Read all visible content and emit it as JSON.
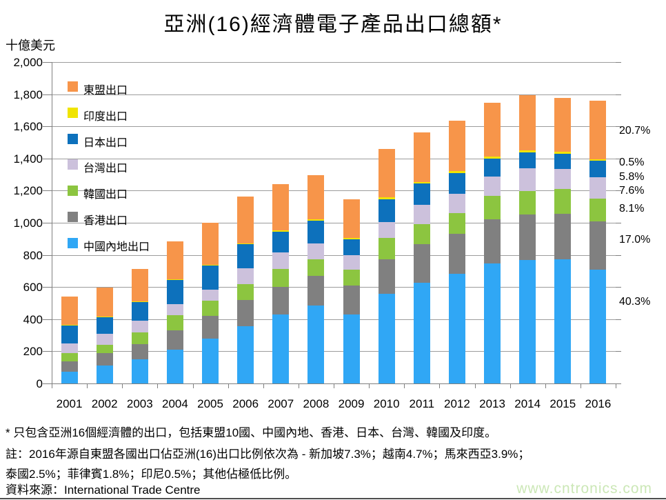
{
  "page": {
    "title": "亞洲(16)經濟體電子產品出口總額*",
    "unit_label": "十億美元"
  },
  "chart_data": {
    "type": "bar",
    "stacked": true,
    "title": "亞洲(16)經濟體電子產品出口總額*",
    "ylabel": "十億美元",
    "xlabel": "",
    "ylim": [
      0,
      2000
    ],
    "ytick_step": 200,
    "grid": true,
    "legend_position": "inside-top-left",
    "categories": [
      "2001",
      "2002",
      "2003",
      "2004",
      "2005",
      "2006",
      "2007",
      "2008",
      "2009",
      "2010",
      "2011",
      "2012",
      "2013",
      "2014",
      "2015",
      "2016"
    ],
    "series": [
      {
        "name": "中國內地出口",
        "color": "#30A7F5",
        "values": [
          73,
          112,
          152,
          209,
          278,
          357,
          430,
          483,
          430,
          559,
          625,
          683,
          747,
          769,
          771,
          709
        ]
      },
      {
        "name": "香港出口",
        "color": "#808080",
        "values": [
          64,
          78,
          91,
          121,
          141,
          164,
          171,
          186,
          179,
          213,
          240,
          250,
          274,
          283,
          286,
          299
        ]
      },
      {
        "name": "韓國出口",
        "color": "#8CC540",
        "values": [
          53,
          50,
          76,
          95,
          95,
          97,
          110,
          103,
          100,
          133,
          126,
          129,
          148,
          146,
          152,
          143
        ]
      },
      {
        "name": "台灣出口",
        "color": "#CCC1DC",
        "values": [
          58,
          69,
          71,
          68,
          69,
          100,
          104,
          100,
          89,
          100,
          122,
          118,
          117,
          139,
          127,
          134
        ]
      },
      {
        "name": "日本出口",
        "color": "#0D71BC",
        "values": [
          114,
          104,
          115,
          150,
          152,
          147,
          128,
          142,
          101,
          142,
          130,
          129,
          111,
          100,
          93,
          102
        ]
      },
      {
        "name": "印度出口",
        "color": "#F0E400",
        "values": [
          2,
          3,
          4,
          5,
          5,
          6,
          8,
          8,
          8,
          10,
          12,
          13,
          15,
          13,
          12,
          9
        ]
      },
      {
        "name": "東盟出口",
        "color": "#F7954A",
        "values": [
          176,
          179,
          203,
          238,
          260,
          294,
          289,
          273,
          238,
          301,
          308,
          314,
          333,
          345,
          335,
          364
        ]
      }
    ],
    "legend_top_to_bottom": [
      "東盟出口",
      "印度出口",
      "日本出口",
      "台灣出口",
      "韓國出口",
      "香港出口",
      "中國內地出口"
    ],
    "annotations": [
      {
        "text": "20.7%",
        "at_value": 1569
      },
      {
        "text": "0.5%",
        "at_value": 1372
      },
      {
        "text": "5.8%",
        "at_value": 1282
      },
      {
        "text": "7.6%",
        "at_value": 1196
      },
      {
        "text": "8.1%",
        "at_value": 1084
      },
      {
        "text": "17.0%",
        "at_value": 891
      },
      {
        "text": "40.3%",
        "at_value": 506
      }
    ]
  },
  "footnotes": {
    "line1": "* 只包含亞洲16個經濟體的出口，包括東盟10國、中國內地、香港、日本、台灣、韓國及印度。",
    "line2": "註：2016年源自東盟各國出口佔亞洲(16)出口比例依次為 - 新加坡7.3%；越南4.7%；馬來西亞3.9%；",
    "line3": "泰國2.5%；菲律賓1.8%；印尼0.5%；其他佔極低比例。",
    "source": "資料來源：International Trade Centre"
  },
  "watermark": {
    "text": "www.cntronics.com",
    "color": "#cbe7b6"
  }
}
